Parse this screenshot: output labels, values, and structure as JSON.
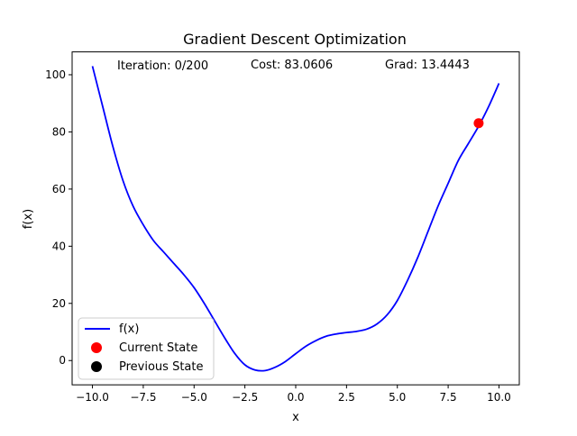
{
  "chart_data": {
    "type": "line",
    "title": "Gradient Descent Optimization",
    "xlabel": "x",
    "ylabel": "f(x)",
    "xlim": [
      -11,
      11
    ],
    "ylim": [
      -8.5,
      108
    ],
    "x_ticks": [
      -10.0,
      -7.5,
      -5.0,
      -2.5,
      0.0,
      2.5,
      5.0,
      7.5,
      10.0
    ],
    "x_tick_labels": [
      "−10.0",
      "−7.5",
      "−5.0",
      "−2.5",
      "0.0",
      "2.5",
      "5.0",
      "7.5",
      "10.0"
    ],
    "y_ticks": [
      0,
      20,
      40,
      60,
      80,
      100
    ],
    "y_tick_labels": [
      "0",
      "20",
      "40",
      "60",
      "80",
      "100"
    ],
    "grid": false,
    "legend_position": "lower-left",
    "annotations": {
      "iteration": "Iteration: 0/200",
      "cost": "Cost: 83.0606",
      "grad": "Grad: 13.4443"
    },
    "series": [
      {
        "name": "f(x)",
        "kind": "line",
        "color": "#0000ff",
        "x": [
          -10,
          -9.5,
          -9,
          -8.5,
          -8,
          -7.5,
          -7,
          -6.5,
          -6,
          -5.5,
          -5,
          -4.5,
          -4,
          -3.5,
          -3,
          -2.5,
          -2,
          -1.5,
          -1,
          -0.5,
          0,
          0.5,
          1,
          1.5,
          2,
          2.5,
          3,
          3.5,
          4,
          4.5,
          5,
          5.5,
          6,
          6.5,
          7,
          7.5,
          8,
          8.5,
          9,
          9.5,
          10
        ],
        "y": [
          103,
          89,
          75,
          63,
          54,
          47.5,
          42,
          38,
          34,
          30,
          25.5,
          20,
          14,
          8,
          2.5,
          -1.5,
          -3.3,
          -3.5,
          -2.3,
          -0.3,
          2.4,
          5,
          7,
          8.5,
          9.3,
          9.8,
          10.2,
          11,
          12.8,
          16,
          21,
          28,
          36,
          45,
          54,
          62,
          70,
          76,
          82,
          89,
          97
        ]
      },
      {
        "name": "Current State",
        "kind": "marker",
        "color": "#ff0000",
        "x": [
          9
        ],
        "y": [
          83.0606
        ]
      },
      {
        "name": "Previous State",
        "kind": "marker",
        "color": "#000000",
        "x": [],
        "y": []
      }
    ]
  }
}
